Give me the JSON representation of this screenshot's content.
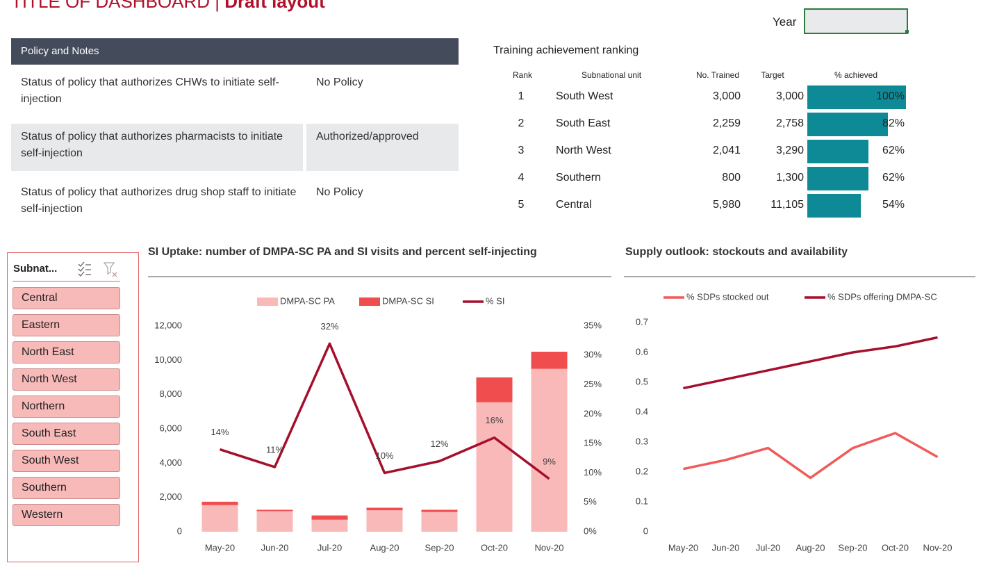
{
  "header": {
    "title": "TITLE OF DASHBOARD",
    "separator": "|",
    "subtitle": "Draft layout",
    "year_label": "Year"
  },
  "policy": {
    "heading": "Policy and Notes",
    "rows": [
      {
        "text": "Status of policy that authorizes CHWs to initiate self-injection",
        "status": "No Policy"
      },
      {
        "text": "Status of policy that authorizes pharmacists to initiate self-injection",
        "status": "Authorized/approved"
      },
      {
        "text": "Status of policy that authorizes drug shop staff to initiate self-injection",
        "status": "No Policy"
      }
    ]
  },
  "ranking": {
    "title": "Training achievement ranking",
    "columns": [
      "Rank",
      "Subnational unit",
      "No. Trained",
      "Target",
      "% achieved"
    ],
    "xlim": [
      0,
      100
    ],
    "color": "#0e8a96",
    "rows": [
      {
        "rank": "1",
        "unit": "South West",
        "trained": "3,000",
        "target": "3,000",
        "achieved": 100,
        "achieved_label": "100%"
      },
      {
        "rank": "2",
        "unit": "South East",
        "trained": "2,259",
        "target": "2,758",
        "achieved": 82,
        "achieved_label": "82%"
      },
      {
        "rank": "3",
        "unit": "North West",
        "trained": "2,041",
        "target": "3,290",
        "achieved": 62,
        "achieved_label": "62%"
      },
      {
        "rank": "4",
        "unit": "Southern",
        "trained": "800",
        "target": "1,300",
        "achieved": 62,
        "achieved_label": "62%"
      },
      {
        "rank": "5",
        "unit": "Central",
        "trained": "5,980",
        "target": "11,105",
        "achieved": 54,
        "achieved_label": "54%"
      }
    ]
  },
  "slicer": {
    "title": "Subnat...",
    "items": [
      "Central",
      "Eastern",
      "North East",
      "North West",
      "Northern",
      "South East",
      "South West",
      "Southern",
      "Western"
    ]
  },
  "chart_data": [
    {
      "type": "bar",
      "stacked": true,
      "grid": false,
      "title": "SI Uptake: number of DMPA-SC PA and SI visits and percent self-injecting",
      "categories": [
        "May-20",
        "Jun-20",
        "Jul-20",
        "Aug-20",
        "Sep-20",
        "Oct-20",
        "Nov-20"
      ],
      "series": [
        {
          "name": "DMPA-SC PA",
          "color": "#f9b9b9",
          "values": [
            1550,
            1200,
            700,
            1250,
            1150,
            7550,
            9500
          ]
        },
        {
          "name": "DMPA-SC SI",
          "color": "#f04e4e",
          "values": [
            200,
            80,
            250,
            150,
            130,
            1450,
            1000
          ]
        },
        {
          "name": "% SI",
          "color": "#a50f2d",
          "axis": "y2",
          "values": [
            14,
            11,
            32,
            10,
            12,
            16,
            9
          ],
          "value_labels": [
            "14%",
            "11%",
            "32%",
            "10%",
            "12%",
            "16%",
            "9%"
          ]
        }
      ],
      "ylim": [
        0,
        12000
      ],
      "yticks": [
        0,
        {
          "value": 2000,
          "label": "2,000"
        },
        {
          "value": 4000,
          "label": "4,000"
        },
        {
          "value": 6000,
          "label": "6,000"
        },
        {
          "value": 8000,
          "label": "8,000"
        },
        {
          "value": 10000,
          "label": "10,000"
        },
        {
          "value": 12000,
          "label": "12,000"
        }
      ],
      "y2lim": [
        0,
        35
      ],
      "y2ticks": [
        {
          "value": 0,
          "label": "0%"
        },
        {
          "value": 5,
          "label": "5%"
        },
        {
          "value": 10,
          "label": "10%"
        },
        {
          "value": 15,
          "label": "15%"
        },
        {
          "value": 20,
          "label": "20%"
        },
        {
          "value": 25,
          "label": "25%"
        },
        {
          "value": 30,
          "label": "30%"
        },
        {
          "value": 35,
          "label": "35%"
        }
      ]
    },
    {
      "type": "line",
      "grid": false,
      "title": "Supply outlook: stockouts and availability",
      "categories": [
        "May-20",
        "Jun-20",
        "Jul-20",
        "Aug-20",
        "Sep-20",
        "Oct-20",
        "Nov-20"
      ],
      "series": [
        {
          "name": "% SDPs stocked out",
          "color": "#f05a5a",
          "values": [
            0.21,
            0.24,
            0.28,
            0.18,
            0.28,
            0.33,
            0.25
          ]
        },
        {
          "name": "% SDPs offering DMPA-SC",
          "color": "#a50f2d",
          "values": [
            0.48,
            0.51,
            0.54,
            0.57,
            0.6,
            0.62,
            0.65
          ]
        }
      ],
      "ylim": [
        0,
        0.7
      ],
      "yticks": [
        0,
        0.1,
        0.2,
        0.3,
        0.4,
        0.5,
        0.6,
        0.7
      ]
    }
  ]
}
